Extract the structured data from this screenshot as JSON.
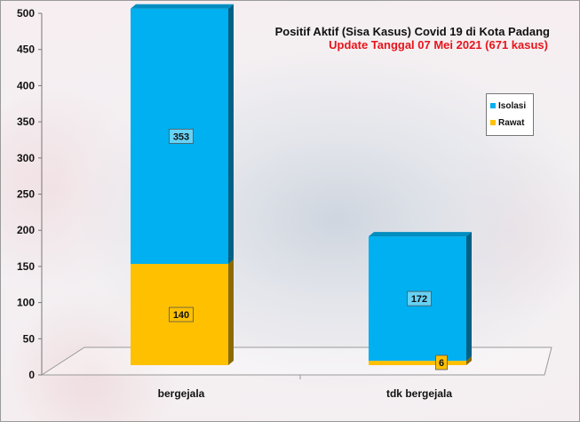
{
  "chart_data": {
    "type": "bar",
    "stacked": true,
    "style": "3d",
    "title": "Positif Aktif  (Sisa Kasus) Covid 19 di Kota Padang",
    "subtitle": "Update Tanggal 07 Mei 2021  (671 kasus)",
    "categories": [
      "bergejala",
      "tdk bergejala"
    ],
    "series": [
      {
        "name": "Rawat",
        "values": [
          140,
          6
        ],
        "color": "#ffc000"
      },
      {
        "name": "Isolasi",
        "values": [
          353,
          172
        ],
        "color": "#00b0f0"
      }
    ],
    "ylim": [
      0,
      500
    ],
    "yticks": [
      "0",
      "50",
      "100",
      "150",
      "200",
      "250",
      "300",
      "350",
      "400",
      "450",
      "500"
    ],
    "legend_position": "right",
    "legend_order": [
      "Isolasi",
      "Rawat"
    ],
    "grid": false
  }
}
